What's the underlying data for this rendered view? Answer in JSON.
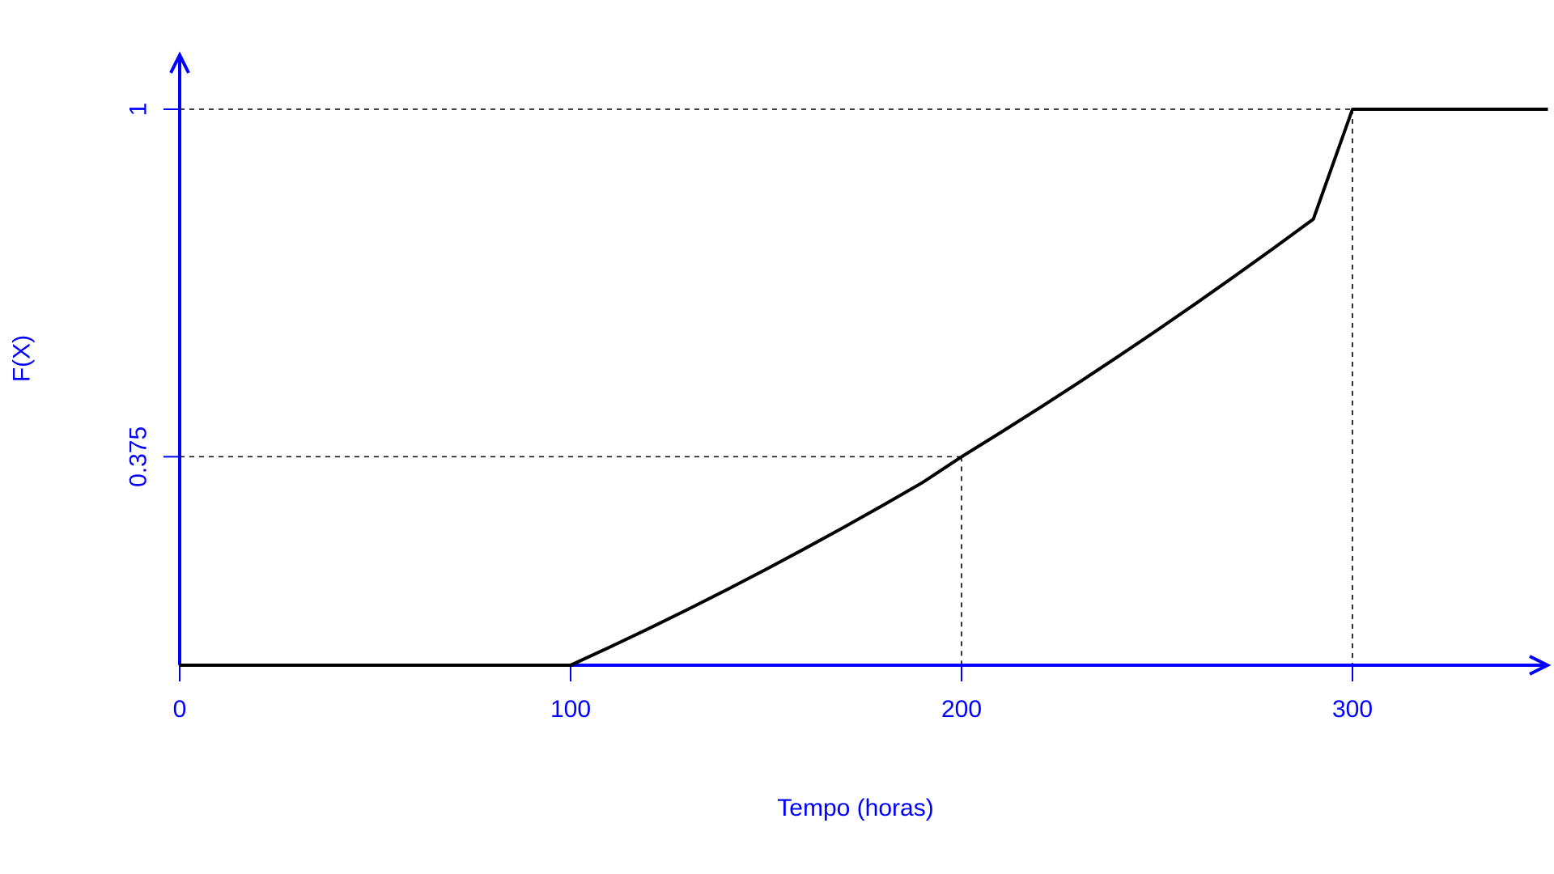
{
  "chart_data": {
    "type": "line",
    "title": "",
    "xlabel": "Tempo (horas)",
    "ylabel": "F(X)",
    "xlim": [
      0,
      350
    ],
    "ylim": [
      0,
      1
    ],
    "x_ticks": [
      "0",
      "100",
      "200",
      "300"
    ],
    "x_tick_values": [
      0,
      100,
      200,
      300
    ],
    "y_ticks": [
      "0.375",
      "1"
    ],
    "y_tick_values": [
      0.375,
      1
    ],
    "grid": false,
    "legend": "none",
    "axis_color": "#0000ff",
    "line_color": "#000000",
    "series": [
      {
        "x": [
          0,
          100,
          110,
          120,
          130,
          140,
          150,
          160,
          170,
          180,
          190,
          200,
          210,
          220,
          230,
          240,
          250,
          260,
          270,
          280,
          290,
          300,
          350
        ],
        "y": [
          0,
          0,
          0.0325,
          0.066,
          0.1005,
          0.136,
          0.1725,
          0.21,
          0.2485,
          0.288,
          0.3285,
          0.375,
          0.4185,
          0.463,
          0.5085,
          0.555,
          0.6025,
          0.651,
          0.7005,
          0.751,
          0.8025,
          1,
          1
        ]
      }
    ],
    "reference_lines": [
      {
        "x": 200,
        "y": 0.375
      },
      {
        "x": 300,
        "y": 1
      }
    ]
  }
}
